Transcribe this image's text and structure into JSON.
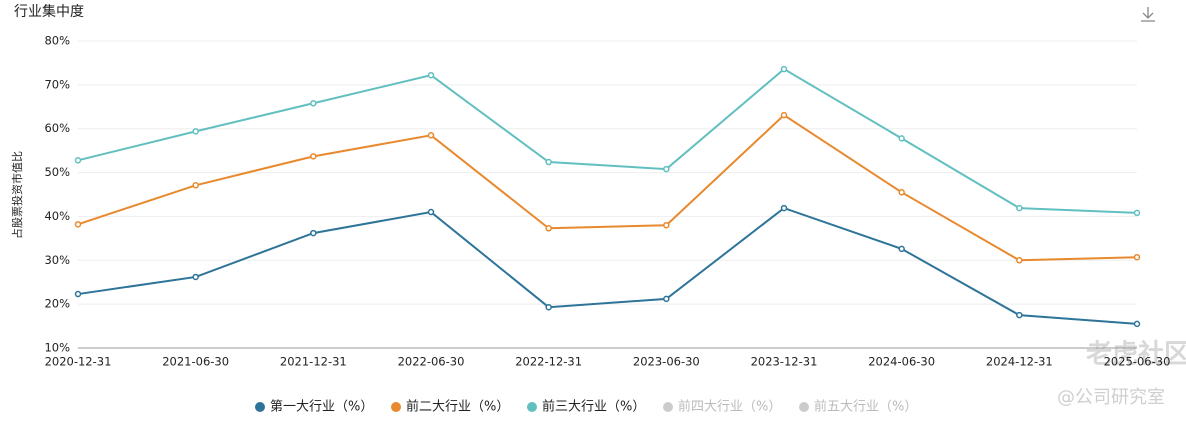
{
  "chart_data": {
    "type": "line",
    "title": "行业集中度",
    "y_label": "占股票投资市值比",
    "categories": [
      "2020-12-31",
      "2021-06-30",
      "2021-12-31",
      "2022-06-30",
      "2022-12-31",
      "2023-06-30",
      "2023-12-31",
      "2024-06-30",
      "2024-12-31",
      "2025-06-30"
    ],
    "series": [
      {
        "name": "第一大行业（%）",
        "color": "#2e7499",
        "visible": true,
        "values": [
          22.3,
          26.2,
          36.2,
          41.0,
          19.3,
          21.2,
          41.9,
          32.6,
          17.5,
          15.5
        ]
      },
      {
        "name": "前二大行业（%）",
        "color": "#e8892e",
        "visible": true,
        "values": [
          38.2,
          47.1,
          53.7,
          58.5,
          37.3,
          38.0,
          63.1,
          45.5,
          30.0,
          30.7
        ]
      },
      {
        "name": "前三大行业（%）",
        "color": "#62bfc0",
        "visible": true,
        "values": [
          52.8,
          59.4,
          65.8,
          72.2,
          52.4,
          50.8,
          73.6,
          57.8,
          41.9,
          40.8
        ]
      },
      {
        "name": "前四大行业（%）",
        "color": "#cccccc",
        "visible": false,
        "values": [
          null,
          null,
          null,
          null,
          null,
          null,
          null,
          null,
          null,
          null
        ]
      },
      {
        "name": "前五大行业（%）",
        "color": "#cccccc",
        "visible": false,
        "values": [
          null,
          null,
          null,
          null,
          null,
          null,
          null,
          null,
          null,
          null
        ]
      }
    ],
    "ylim": [
      10,
      80
    ],
    "yticks": [
      {
        "value": 10,
        "label": "10%"
      },
      {
        "value": 20,
        "label": "20%"
      },
      {
        "value": 30,
        "label": "30%"
      },
      {
        "value": 40,
        "label": "40%"
      },
      {
        "value": 50,
        "label": "50%"
      },
      {
        "value": 60,
        "label": "60%"
      },
      {
        "value": 70,
        "label": "70%"
      },
      {
        "value": 80,
        "label": "80%"
      }
    ],
    "grid": true,
    "legend": "bottom",
    "watermark": [
      "老虎社区",
      "@公司研究室"
    ]
  }
}
